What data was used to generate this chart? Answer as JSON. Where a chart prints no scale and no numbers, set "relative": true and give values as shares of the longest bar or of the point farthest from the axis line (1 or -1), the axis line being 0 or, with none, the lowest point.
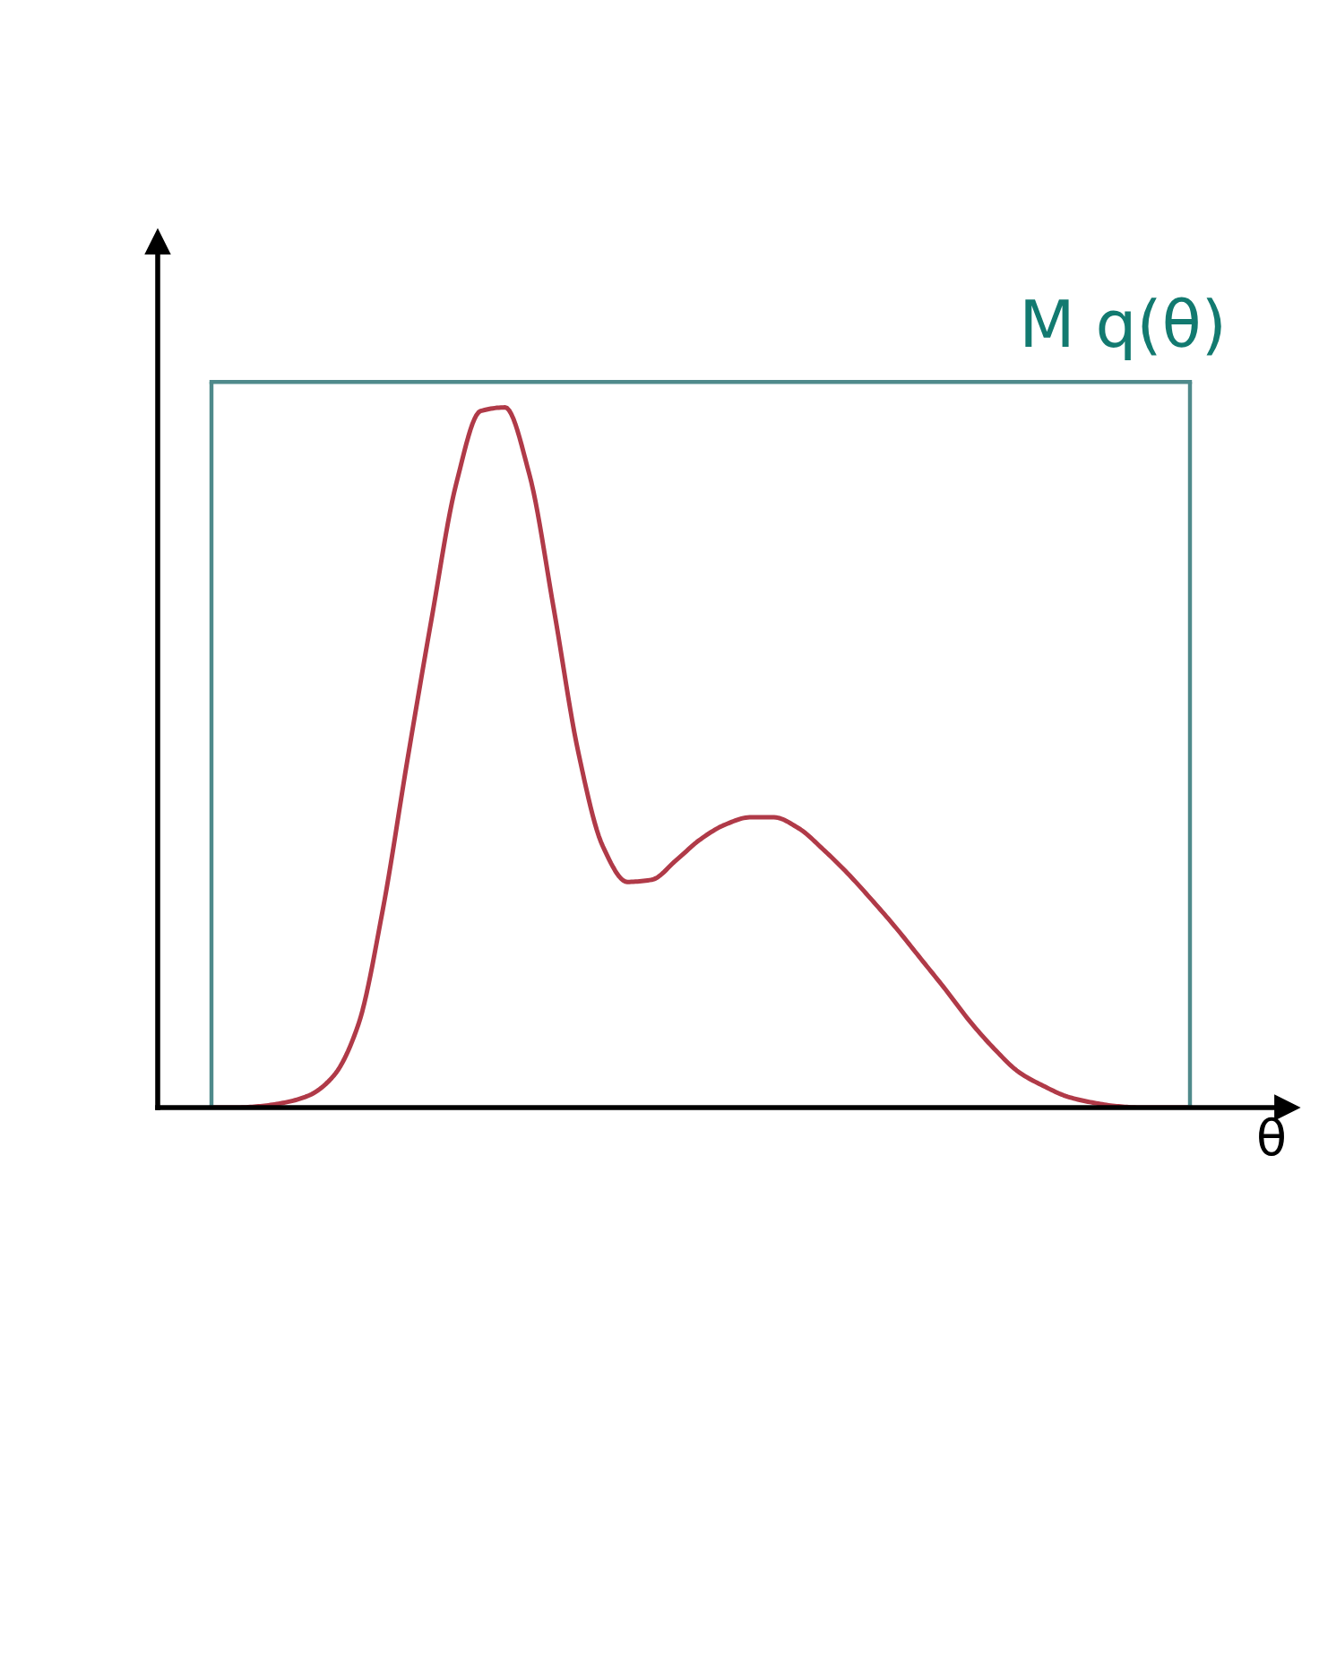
{
  "chart_data": {
    "type": "line",
    "relative": true,
    "xlabel": "θ",
    "categories": [
      null,
      null,
      null,
      null,
      null,
      null,
      null,
      null,
      null,
      null,
      null,
      null,
      null,
      null,
      null,
      null,
      null,
      null,
      null,
      null,
      null,
      null,
      null,
      null,
      null,
      null,
      null,
      null,
      null,
      null,
      null,
      null,
      null,
      null,
      null,
      null,
      null,
      null,
      null,
      null,
      null
    ],
    "series": [
      {
        "color": "#b03a48",
        "values": [
          0,
          0,
          0.002,
          0.007,
          0.017,
          0.044,
          0.114,
          0.272,
          0.477,
          0.674,
          0.859,
          0.96,
          0.965,
          0.872,
          0.686,
          0.489,
          0.36,
          0.311,
          0.314,
          0.341,
          0.37,
          0.39,
          0.4,
          0.4,
          0.385,
          0.356,
          0.323,
          0.286,
          0.247,
          0.205,
          0.163,
          0.119,
          0.081,
          0.049,
          0.03,
          0.015,
          0.007,
          0.002,
          0,
          0,
          0
        ]
      },
      {
        "type": "step",
        "name": "M q(θ)",
        "color": "#4f8a8b",
        "values": [
          1,
          1,
          1,
          1,
          1,
          1,
          1,
          1,
          1,
          1,
          1,
          1,
          1,
          1,
          1,
          1,
          1,
          1,
          1,
          1,
          1,
          1,
          1,
          1,
          1,
          1,
          1,
          1,
          1,
          1,
          1,
          1,
          1,
          1,
          1,
          1,
          1,
          1,
          1,
          1,
          1
        ]
      }
    ]
  }
}
